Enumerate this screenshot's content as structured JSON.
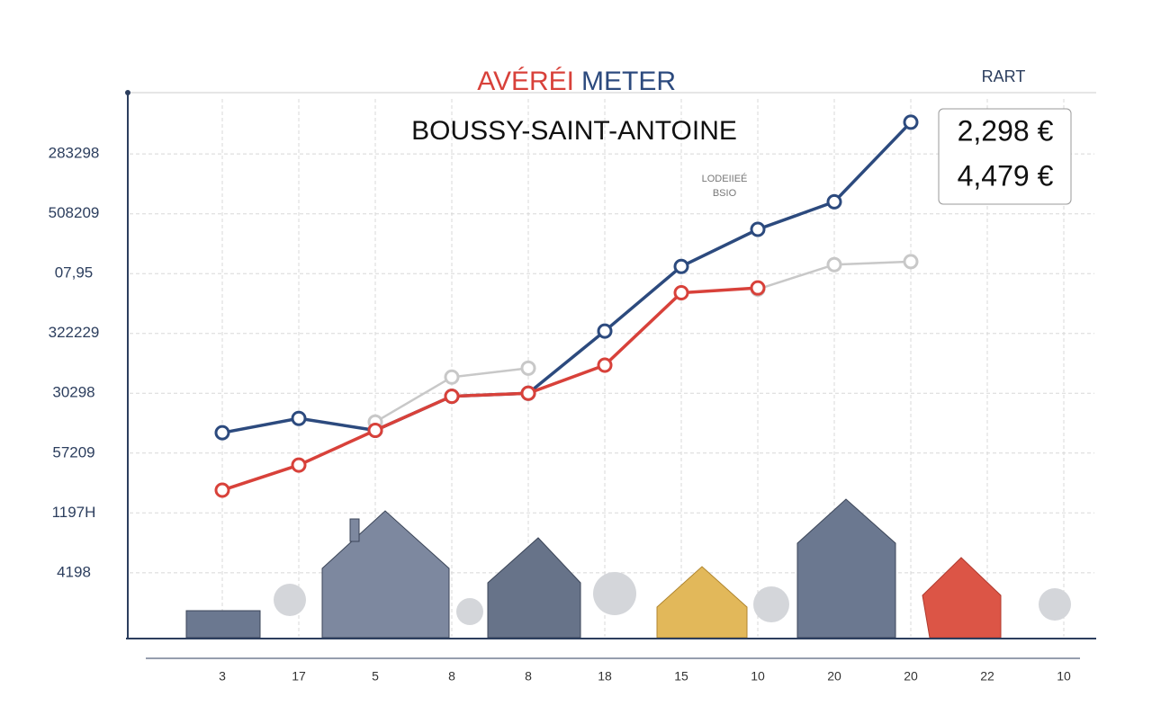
{
  "chart_data": {
    "type": "line",
    "title": [
      "AVÉRÉI",
      "METER"
    ],
    "subtitle": "BOUSSY-SAINT-ANTOINE",
    "corner_label": "RART",
    "annotation": [
      "LODEIIEÉ",
      "BSIO"
    ],
    "price_box": [
      "2,298 €",
      "4,479 €"
    ],
    "categories": [
      "3",
      "17",
      "5",
      "8",
      "8",
      "18",
      "15",
      "10",
      "20",
      "20",
      "22",
      "10"
    ],
    "series": [
      {
        "color": "#2c4a7e",
        "values": [
          3.34,
          3.58,
          3.38,
          3.95,
          4.0,
          5.04,
          6.12,
          6.74,
          7.2,
          8.53,
          null,
          null
        ]
      },
      {
        "color": "#c8c8c8",
        "values": [
          null,
          null,
          3.52,
          4.27,
          4.42,
          null,
          null,
          5.74,
          6.15,
          6.2,
          null,
          null
        ]
      },
      {
        "color": "#d8413a",
        "values": [
          2.38,
          2.8,
          3.38,
          3.95,
          4.0,
          4.47,
          5.68,
          5.76,
          null,
          null,
          null,
          null
        ]
      }
    ],
    "ylim": [
      -0.1,
      9.1
    ],
    "yticks": [
      {
        "value": 1,
        "label": "4198"
      },
      {
        "value": 2,
        "label": "1197H"
      },
      {
        "value": 3,
        "label": "57209"
      },
      {
        "value": 4,
        "label": "30298"
      },
      {
        "value": 5,
        "label": "322229"
      },
      {
        "value": 6,
        "label": "07,95"
      },
      {
        "value": 7,
        "label": "508209"
      },
      {
        "value": 8,
        "label": "283298"
      }
    ],
    "grid": true
  }
}
